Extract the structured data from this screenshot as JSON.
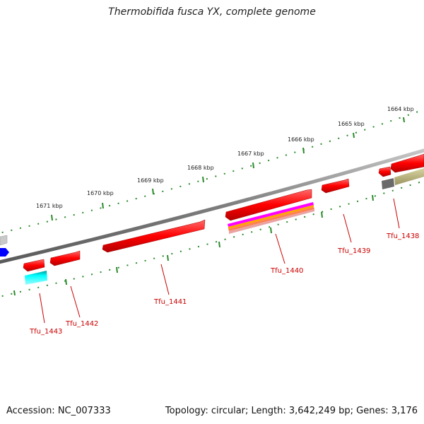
{
  "title": "Thermobifida fusca YX, complete genome",
  "footer": {
    "accession": "Accession: NC_007333",
    "info": "Topology: circular; Length: 3,642,249 bp; Genes: 3,176"
  },
  "colors": {
    "gene": "#ff0000",
    "backbone": "#8a8a8a",
    "tick": "#2a8a2a",
    "label": "#cc0000"
  },
  "kbp_labels": [
    "1664 kbp",
    "1665 kbp",
    "1666 kbp",
    "1667 kbp",
    "1668 kbp",
    "1669 kbp",
    "1670 kbp",
    "1671 kbp"
  ],
  "gene_labels": [
    "Tfu_1438",
    "Tfu_1439",
    "Tfu_1440",
    "Tfu_1441",
    "Tfu_1442",
    "Tfu_1443"
  ]
}
